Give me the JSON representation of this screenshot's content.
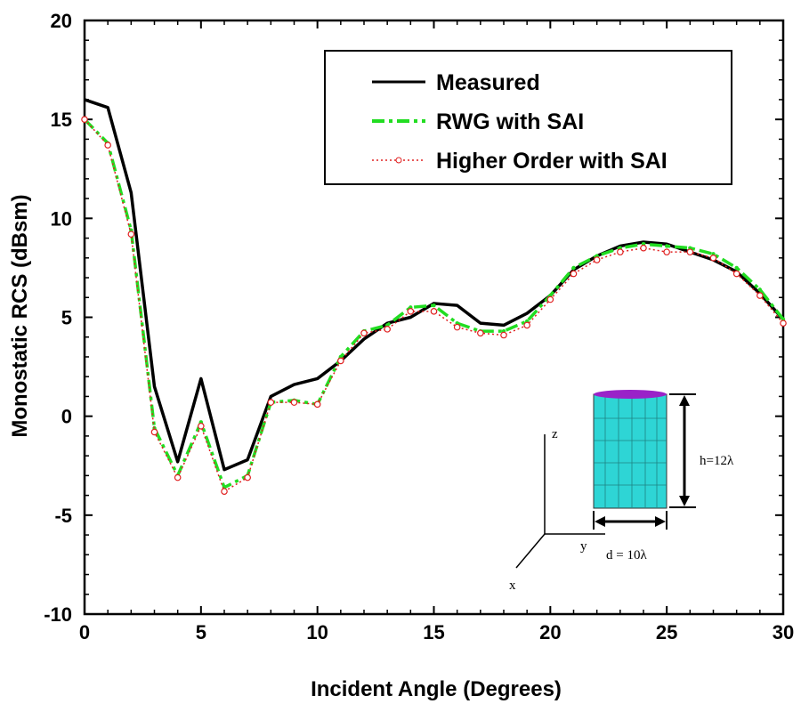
{
  "chart_data": {
    "type": "line",
    "title": "",
    "xlabel": "Incident Angle (Degrees)",
    "ylabel": "Monostatic RCS (dBsm)",
    "xlim": [
      0,
      30
    ],
    "ylim": [
      -10,
      20
    ],
    "xticks": [
      "0",
      "5",
      "10",
      "15",
      "20",
      "25",
      "30"
    ],
    "yticks": [
      "-10",
      "-5",
      "0",
      "5",
      "10",
      "15",
      "20"
    ],
    "grid": false,
    "legend_position": "top-right",
    "x": [
      0,
      1,
      2,
      3,
      4,
      5,
      6,
      7,
      8,
      9,
      10,
      11,
      12,
      13,
      14,
      15,
      16,
      17,
      18,
      19,
      20,
      21,
      22,
      23,
      24,
      25,
      26,
      27,
      28,
      29,
      30
    ],
    "series": [
      {
        "name": "Measured",
        "color": "#000000",
        "style": "solid",
        "values": [
          16.0,
          15.6,
          11.3,
          1.5,
          -2.3,
          1.9,
          -2.7,
          -2.2,
          1.0,
          1.6,
          1.9,
          2.8,
          3.9,
          4.7,
          5.0,
          5.7,
          5.6,
          4.7,
          4.6,
          5.2,
          6.1,
          7.4,
          8.1,
          8.6,
          8.8,
          8.7,
          8.3,
          7.9,
          7.3,
          6.2,
          4.9
        ]
      },
      {
        "name": "RWG with SAI",
        "color": "#22dd22",
        "style": "dash-dot",
        "values": [
          15.0,
          13.8,
          9.4,
          -0.6,
          -3.0,
          -0.3,
          -3.6,
          -3.0,
          0.7,
          0.8,
          0.6,
          3.0,
          4.3,
          4.6,
          5.5,
          5.6,
          4.7,
          4.3,
          4.3,
          4.8,
          6.1,
          7.5,
          8.1,
          8.5,
          8.7,
          8.6,
          8.5,
          8.2,
          7.5,
          6.4,
          4.9
        ]
      },
      {
        "name": "Higher Order with SAI",
        "color": "#e02020",
        "style": "dotted-circle",
        "values": [
          15.0,
          13.7,
          9.2,
          -0.8,
          -3.1,
          -0.5,
          -3.8,
          -3.1,
          0.7,
          0.7,
          0.6,
          2.8,
          4.2,
          4.4,
          5.3,
          5.3,
          4.5,
          4.2,
          4.1,
          4.6,
          5.9,
          7.2,
          7.9,
          8.3,
          8.5,
          8.3,
          8.3,
          8.0,
          7.2,
          6.1,
          4.7
        ]
      }
    ],
    "annotations": {
      "height_label": "h=12λ",
      "diameter_label": "d = 10λ",
      "axis_z": "z",
      "axis_y": "y",
      "axis_x": "x"
    }
  }
}
